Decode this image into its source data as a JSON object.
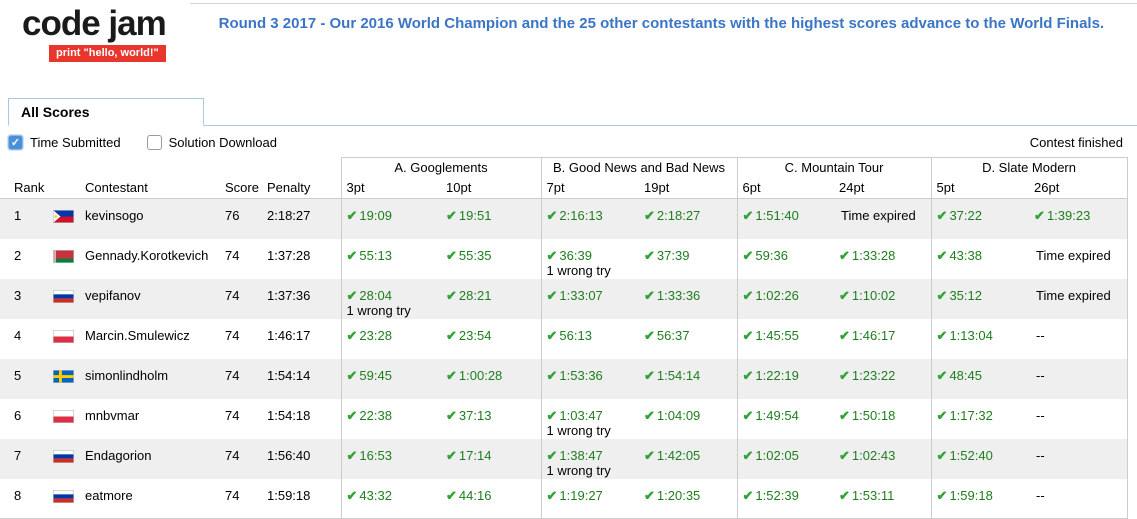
{
  "colors": {
    "announce_blue": "#3b76c6",
    "badge_red": "#e8362d",
    "check_green": "#2fa334",
    "time_green": "#1e7e1e",
    "stripe_gray": "#efefef",
    "border_gray": "#cccccc",
    "tab_border": "#a9c7e7",
    "checkbox_blue": "#4a90d9"
  },
  "header": {
    "logo_text": "code jam",
    "logo_tagline": "print \"hello, world!\"",
    "announcement": "Round 3 2017 - Our 2016 World Champion and the 25 other contestants with the highest scores advance to the World Finals."
  },
  "tabs": {
    "all_scores": "All Scores"
  },
  "filters": {
    "time_submitted": {
      "label": "Time Submitted",
      "checked": true
    },
    "solution_download": {
      "label": "Solution Download",
      "checked": false
    },
    "contest_status": "Contest finished"
  },
  "table": {
    "columns": {
      "rank": "Rank",
      "contestant": "Contestant",
      "score": "Score",
      "penalty": "Penalty"
    },
    "problems": [
      {
        "name": "A. Googlements",
        "pt1": "3pt",
        "pt2": "10pt"
      },
      {
        "name": "B. Good News and Bad News",
        "pt1": "7pt",
        "pt2": "19pt"
      },
      {
        "name": "C. Mountain Tour",
        "pt1": "6pt",
        "pt2": "24pt"
      },
      {
        "name": "D. Slate Modern",
        "pt1": "5pt",
        "pt2": "26pt"
      }
    ],
    "rows": [
      {
        "rank": "1",
        "country": "Philippines",
        "name": "kevinsogo",
        "score": "76",
        "penalty": "2:18:27",
        "attempts": [
          {
            "check": true,
            "text": "19:09"
          },
          {
            "check": true,
            "text": "19:51"
          },
          {
            "check": true,
            "text": "2:16:13"
          },
          {
            "check": true,
            "text": "2:18:27"
          },
          {
            "check": true,
            "text": "1:51:40"
          },
          {
            "check": false,
            "text": "Time expired"
          },
          {
            "check": true,
            "text": "37:22"
          },
          {
            "check": true,
            "text": "1:39:23"
          }
        ]
      },
      {
        "rank": "2",
        "country": "Belarus",
        "name": "Gennady.Korotkevich",
        "score": "74",
        "penalty": "1:37:28",
        "attempts": [
          {
            "check": true,
            "text": "55:13"
          },
          {
            "check": true,
            "text": "55:35"
          },
          {
            "check": true,
            "text": "36:39",
            "note": "1 wrong try"
          },
          {
            "check": true,
            "text": "37:39"
          },
          {
            "check": true,
            "text": "59:36"
          },
          {
            "check": true,
            "text": "1:33:28"
          },
          {
            "check": true,
            "text": "43:38"
          },
          {
            "check": false,
            "text": "Time expired"
          }
        ]
      },
      {
        "rank": "3",
        "country": "Russia",
        "name": "vepifanov",
        "score": "74",
        "penalty": "1:37:36",
        "attempts": [
          {
            "check": true,
            "text": "28:04",
            "note": "1 wrong try"
          },
          {
            "check": true,
            "text": "28:21"
          },
          {
            "check": true,
            "text": "1:33:07"
          },
          {
            "check": true,
            "text": "1:33:36"
          },
          {
            "check": true,
            "text": "1:02:26"
          },
          {
            "check": true,
            "text": "1:10:02"
          },
          {
            "check": true,
            "text": "35:12"
          },
          {
            "check": false,
            "text": "Time expired"
          }
        ]
      },
      {
        "rank": "4",
        "country": "Poland",
        "name": "Marcin.Smulewicz",
        "score": "74",
        "penalty": "1:46:17",
        "attempts": [
          {
            "check": true,
            "text": "23:28"
          },
          {
            "check": true,
            "text": "23:54"
          },
          {
            "check": true,
            "text": "56:13"
          },
          {
            "check": true,
            "text": "56:37"
          },
          {
            "check": true,
            "text": "1:45:55"
          },
          {
            "check": true,
            "text": "1:46:17"
          },
          {
            "check": true,
            "text": "1:13:04"
          },
          {
            "check": false,
            "text": "--"
          }
        ]
      },
      {
        "rank": "5",
        "country": "Sweden",
        "name": "simonlindholm",
        "score": "74",
        "penalty": "1:54:14",
        "attempts": [
          {
            "check": true,
            "text": "59:45"
          },
          {
            "check": true,
            "text": "1:00:28"
          },
          {
            "check": true,
            "text": "1:53:36"
          },
          {
            "check": true,
            "text": "1:54:14"
          },
          {
            "check": true,
            "text": "1:22:19"
          },
          {
            "check": true,
            "text": "1:23:22"
          },
          {
            "check": true,
            "text": "48:45"
          },
          {
            "check": false,
            "text": "--"
          }
        ]
      },
      {
        "rank": "6",
        "country": "Poland",
        "name": "mnbvmar",
        "score": "74",
        "penalty": "1:54:18",
        "attempts": [
          {
            "check": true,
            "text": "22:38"
          },
          {
            "check": true,
            "text": "37:13"
          },
          {
            "check": true,
            "text": "1:03:47",
            "note": "1 wrong try"
          },
          {
            "check": true,
            "text": "1:04:09"
          },
          {
            "check": true,
            "text": "1:49:54"
          },
          {
            "check": true,
            "text": "1:50:18"
          },
          {
            "check": true,
            "text": "1:17:32"
          },
          {
            "check": false,
            "text": "--"
          }
        ]
      },
      {
        "rank": "7",
        "country": "Russia",
        "name": "Endagorion",
        "score": "74",
        "penalty": "1:56:40",
        "attempts": [
          {
            "check": true,
            "text": "16:53"
          },
          {
            "check": true,
            "text": "17:14"
          },
          {
            "check": true,
            "text": "1:38:47",
            "note": "1 wrong try"
          },
          {
            "check": true,
            "text": "1:42:05"
          },
          {
            "check": true,
            "text": "1:02:05"
          },
          {
            "check": true,
            "text": "1:02:43"
          },
          {
            "check": true,
            "text": "1:52:40"
          },
          {
            "check": false,
            "text": "--"
          }
        ]
      },
      {
        "rank": "8",
        "country": "Russia",
        "name": "eatmore",
        "score": "74",
        "penalty": "1:59:18",
        "attempts": [
          {
            "check": true,
            "text": "43:32"
          },
          {
            "check": true,
            "text": "44:16"
          },
          {
            "check": true,
            "text": "1:19:27"
          },
          {
            "check": true,
            "text": "1:20:35"
          },
          {
            "check": true,
            "text": "1:52:39"
          },
          {
            "check": true,
            "text": "1:53:11"
          },
          {
            "check": true,
            "text": "1:59:18"
          },
          {
            "check": false,
            "text": "--"
          }
        ]
      }
    ]
  }
}
